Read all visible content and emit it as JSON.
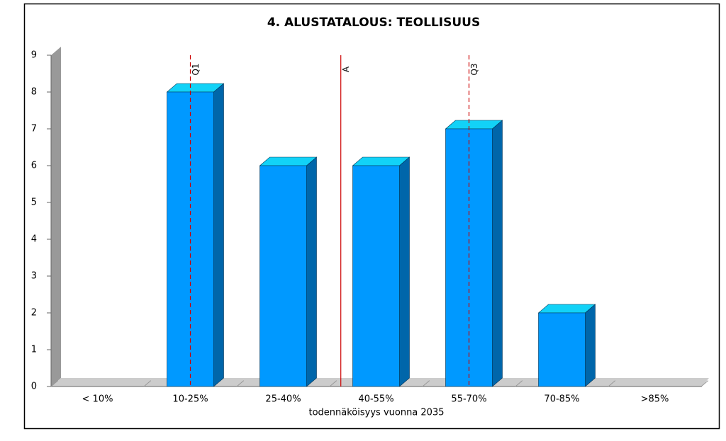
{
  "chart_data": {
    "type": "bar3d",
    "title": "4. ALUSTATALOUS: TEOLLISUUS",
    "x_label": "todennäköisyys vuonna 2035",
    "categories": [
      "< 10%",
      "10-25%",
      "25-40%",
      "40-55%",
      "55-70%",
      "70-85%",
      ">85%"
    ],
    "values": [
      0,
      8,
      6,
      6,
      7,
      2,
      0
    ],
    "color": "#0099ff",
    "ylim": [
      0,
      9
    ],
    "yticks": [
      0,
      1,
      2,
      3,
      4,
      5,
      6,
      7,
      8,
      9
    ],
    "reference_lines": [
      {
        "label": "Q1",
        "position": 1,
        "style": "dashed",
        "color": "#cc0000"
      },
      {
        "label": "A",
        "position": 2.62,
        "style": "solid",
        "color": "#cc0000"
      },
      {
        "label": "Q3",
        "position": 4,
        "style": "dashed",
        "color": "#cc0000"
      }
    ]
  }
}
